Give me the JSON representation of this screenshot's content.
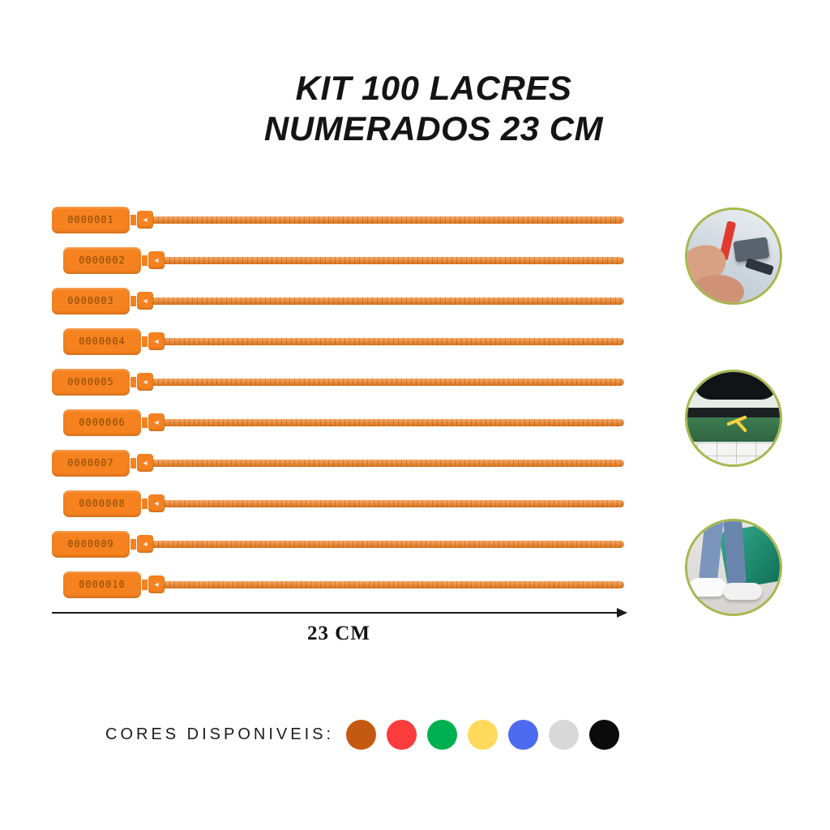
{
  "title": {
    "line1": "KIT 100 LACRES",
    "line2": "NUMERADOS 23 CM"
  },
  "seals": {
    "numbers": [
      "0000001",
      "0000002",
      "0000003",
      "0000004",
      "0000005",
      "0000006",
      "0000007",
      "0000008",
      "0000009",
      "0000010"
    ],
    "color": "#F5821F",
    "number_text_color": "#8A4A00"
  },
  "dimension": {
    "label": "23 CM"
  },
  "gallery": {
    "photos": [
      "seal-in-use-door-latch",
      "seal-in-use-case-handle",
      "seal-in-use-sneakers-bag"
    ]
  },
  "colors": {
    "label": "CORES DISPONIVEIS:",
    "swatches": [
      {
        "name": "orange",
        "hex": "#C45A11"
      },
      {
        "name": "red",
        "hex": "#FA3C3C"
      },
      {
        "name": "green",
        "hex": "#00B050"
      },
      {
        "name": "yellow",
        "hex": "#FFD95C"
      },
      {
        "name": "blue",
        "hex": "#4D6BF0"
      },
      {
        "name": "white",
        "hex": "#D8D8D8"
      },
      {
        "name": "black",
        "hex": "#0B0B0B"
      }
    ]
  }
}
